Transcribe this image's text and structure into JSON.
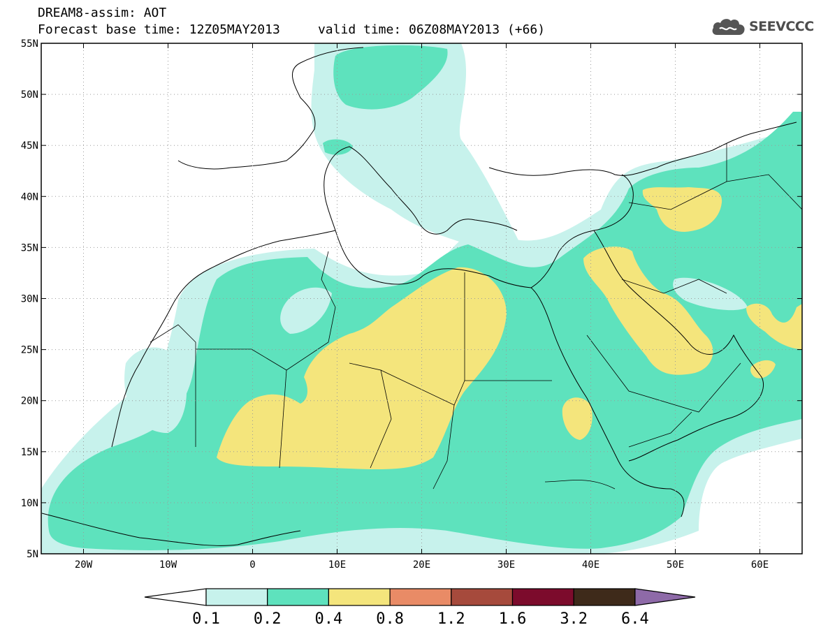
{
  "header": {
    "title_line1": "DREAM8-assim: AOT",
    "title_line2": "Forecast base time: 12Z05MAY2013     valid time: 06Z08MAY2013 (+66)"
  },
  "logo": {
    "text": "SEEVCCC",
    "icon": "cloud-icon"
  },
  "map": {
    "lon_range": [
      -25,
      65
    ],
    "lat_range": [
      5,
      55
    ],
    "lon_ticks": [
      {
        "value": -20,
        "label": "20W"
      },
      {
        "value": -10,
        "label": "10W"
      },
      {
        "value": 0,
        "label": "0"
      },
      {
        "value": 10,
        "label": "10E"
      },
      {
        "value": 20,
        "label": "20E"
      },
      {
        "value": 30,
        "label": "30E"
      },
      {
        "value": 40,
        "label": "40E"
      },
      {
        "value": 50,
        "label": "50E"
      },
      {
        "value": 60,
        "label": "60E"
      }
    ],
    "lat_ticks": [
      {
        "value": 55,
        "label": "55N"
      },
      {
        "value": 50,
        "label": "50N"
      },
      {
        "value": 45,
        "label": "45N"
      },
      {
        "value": 40,
        "label": "40N"
      },
      {
        "value": 35,
        "label": "35N"
      },
      {
        "value": 30,
        "label": "30N"
      },
      {
        "value": 25,
        "label": "25N"
      },
      {
        "value": 20,
        "label": "20N"
      },
      {
        "value": 15,
        "label": "15N"
      },
      {
        "value": 10,
        "label": "10N"
      },
      {
        "value": 5,
        "label": "5N"
      }
    ],
    "grid": "dotted"
  },
  "colorbar": {
    "labels": [
      "0.1",
      "0.2",
      "0.4",
      "0.8",
      "1.2",
      "1.6",
      "3.2",
      "6.4"
    ],
    "colors": [
      "#ffffff",
      "#c7f2ec",
      "#5ee2bd",
      "#f4e57c",
      "#e98b66",
      "#a64a3c",
      "#7c0b2c",
      "#3e2a1a",
      "#8e6aa8"
    ]
  }
}
